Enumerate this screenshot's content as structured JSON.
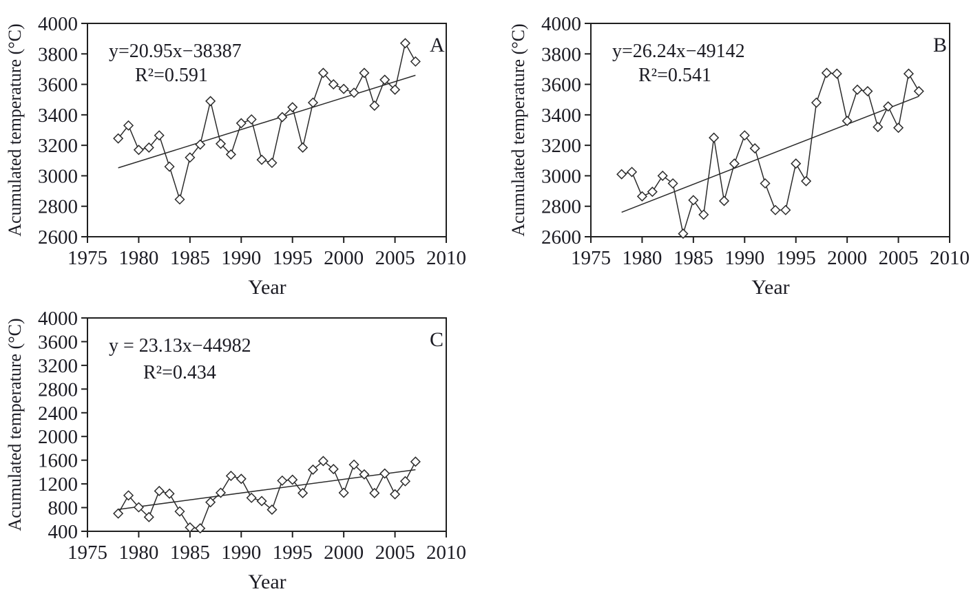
{
  "page": {
    "background": "#ffffff",
    "text_color": "#1c1c24",
    "line_color": "#2b2b2b"
  },
  "chart_data": [
    {
      "type": "line",
      "panel_label": "A",
      "equation": "y=20.95x−38387",
      "r_squared": "R²=0.591",
      "xlabel": "Year",
      "ylabel": "Acumulated temperature (°C)",
      "xlim": [
        1975,
        2010
      ],
      "ylim": [
        2600,
        4000
      ],
      "x_ticks": [
        1975,
        1980,
        1985,
        1990,
        1995,
        2000,
        2005,
        2010
      ],
      "y_ticks": [
        2600,
        2800,
        3000,
        3200,
        3400,
        3600,
        3800,
        4000
      ],
      "marker": "diamond",
      "legend": "none",
      "grid": false,
      "trend": {
        "slope": 20.95,
        "intercept": -38387,
        "x_range": [
          1978,
          2007
        ]
      },
      "x": [
        1978,
        1979,
        1980,
        1981,
        1982,
        1983,
        1984,
        1985,
        1986,
        1987,
        1988,
        1989,
        1990,
        1991,
        1992,
        1993,
        1994,
        1995,
        1996,
        1997,
        1998,
        1999,
        2000,
        2001,
        2002,
        2003,
        2004,
        2005,
        2006,
        2007
      ],
      "y": [
        3245,
        3330,
        3170,
        3185,
        3265,
        3060,
        2845,
        3120,
        3205,
        3490,
        3210,
        3140,
        3345,
        3370,
        3105,
        3085,
        3385,
        3450,
        3185,
        3480,
        3675,
        3600,
        3570,
        3545,
        3675,
        3460,
        3630,
        3565,
        3870,
        3750
      ]
    },
    {
      "type": "line",
      "panel_label": "B",
      "equation": "y=26.24x−49142",
      "r_squared": "R²=0.541",
      "xlabel": "Year",
      "ylabel": "Acumulated temperature (°C)",
      "xlim": [
        1975,
        2010
      ],
      "ylim": [
        2600,
        4000
      ],
      "x_ticks": [
        1975,
        1980,
        1985,
        1990,
        1995,
        2000,
        2005,
        2010
      ],
      "y_ticks": [
        2600,
        2800,
        3000,
        3200,
        3400,
        3600,
        3800,
        4000
      ],
      "marker": "diamond",
      "legend": "none",
      "grid": false,
      "trend": {
        "slope": 26.24,
        "intercept": -49142,
        "x_range": [
          1978,
          2007
        ]
      },
      "x": [
        1978,
        1979,
        1980,
        1981,
        1982,
        1983,
        1984,
        1985,
        1986,
        1987,
        1988,
        1989,
        1990,
        1991,
        1992,
        1993,
        1994,
        1995,
        1996,
        1997,
        1998,
        1999,
        2000,
        2001,
        2002,
        2003,
        2004,
        2005,
        2006,
        2007
      ],
      "y": [
        3010,
        3025,
        2865,
        2895,
        3000,
        2950,
        2620,
        2840,
        2745,
        3250,
        2835,
        3080,
        3265,
        3180,
        2950,
        2775,
        2775,
        3080,
        2965,
        3480,
        3675,
        3670,
        3360,
        3565,
        3555,
        3320,
        3455,
        3315,
        3670,
        3555
      ]
    },
    {
      "type": "line",
      "panel_label": "C",
      "equation": "y = 23.13x−44982",
      "r_squared": "R²=0.434",
      "xlabel": "Year",
      "ylabel": "Acumulated temperature (°C)",
      "xlim": [
        1975,
        2010
      ],
      "ylim": [
        400,
        4000
      ],
      "x_ticks": [
        1975,
        1980,
        1985,
        1990,
        1995,
        2000,
        2005,
        2010
      ],
      "y_ticks": [
        400,
        800,
        1200,
        1600,
        2000,
        2400,
        2800,
        3200,
        3600,
        4000
      ],
      "marker": "diamond",
      "legend": "none",
      "grid": false,
      "trend": {
        "slope": 23.13,
        "intercept": -44982,
        "x_range": [
          1978,
          2007
        ]
      },
      "x": [
        1978,
        1979,
        1980,
        1981,
        1982,
        1983,
        1984,
        1985,
        1986,
        1987,
        1988,
        1989,
        1990,
        1991,
        1992,
        1993,
        1994,
        1995,
        1996,
        1997,
        1998,
        1999,
        2000,
        2001,
        2002,
        2003,
        2004,
        2005,
        2006,
        2007
      ],
      "y": [
        700,
        1005,
        805,
        640,
        1080,
        1035,
        735,
        465,
        450,
        890,
        1050,
        1335,
        1285,
        965,
        910,
        765,
        1255,
        1270,
        1045,
        1440,
        1585,
        1450,
        1050,
        1525,
        1360,
        1045,
        1375,
        1025,
        1245,
        1575
      ]
    }
  ]
}
